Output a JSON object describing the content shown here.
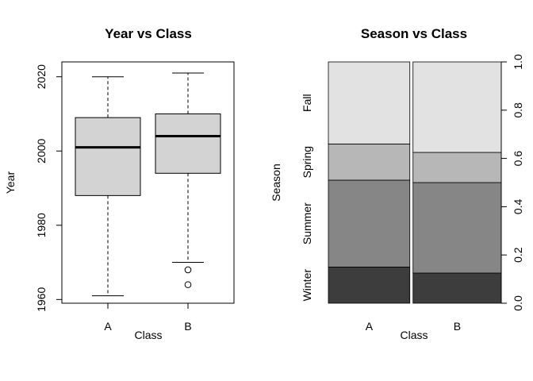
{
  "chart_data": [
    {
      "type": "boxplot",
      "title": "Year vs Class",
      "xlabel": "Class",
      "ylabel": "Year",
      "categories": [
        "A",
        "B"
      ],
      "ylim": [
        1959,
        2024
      ],
      "yticks": [
        1960,
        1980,
        2000,
        2020
      ],
      "boxes": [
        {
          "category": "A",
          "whisker_low": 1961,
          "q1": 1988,
          "median": 2001,
          "q3": 2009,
          "whisker_high": 2020,
          "outliers": []
        },
        {
          "category": "B",
          "whisker_low": 1970,
          "q1": 1994,
          "median": 2004,
          "q3": 2010,
          "whisker_high": 2021,
          "outliers": [
            1968,
            1964
          ]
        }
      ],
      "colors": {
        "box_fill": "#d3d3d3"
      }
    },
    {
      "type": "mosaic",
      "title": "Season vs Class",
      "xlabel": "Class",
      "ylabel": "Season",
      "categories": [
        "A",
        "B"
      ],
      "column_widths": [
        0.48,
        0.52
      ],
      "segments": [
        "Winter",
        "Summer",
        "Spring",
        "Fall"
      ],
      "yticks": [
        "0.0",
        "0.2",
        "0.4",
        "0.6",
        "0.8",
        "1.0"
      ],
      "columns": [
        {
          "category": "A",
          "proportions": [
            0.15,
            0.36,
            0.15,
            0.34
          ]
        },
        {
          "category": "B",
          "proportions": [
            0.125,
            0.375,
            0.125,
            0.375
          ]
        }
      ],
      "colors": {
        "Winter": "#3d3d3d",
        "Summer": "#868686",
        "Spring": "#b7b7b7",
        "Fall": "#e2e2e2"
      }
    }
  ]
}
